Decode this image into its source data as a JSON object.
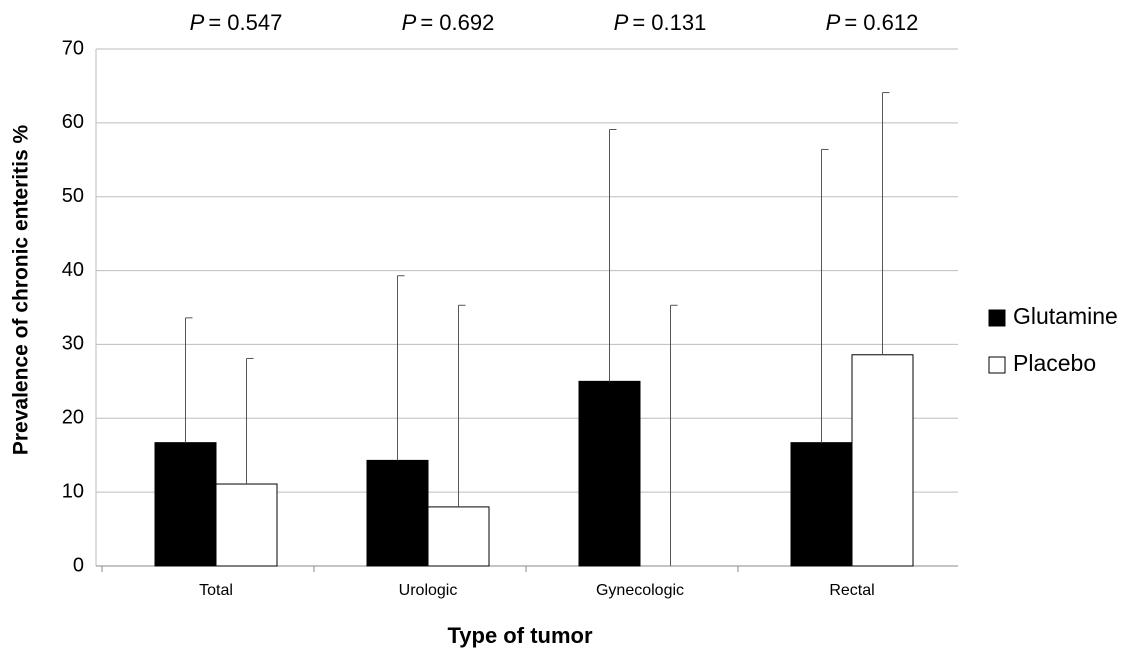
{
  "chart_data": {
    "type": "bar",
    "x_label": "Type of tumor",
    "y_label": "Prevalence of chronic enteritis %",
    "categories": [
      "Total",
      "Urologic",
      "Gynecologic",
      "Rectal"
    ],
    "series": [
      {
        "name": "Glutamine",
        "color": "#000000",
        "values": [
          16.7,
          14.3,
          25,
          16.7
        ],
        "errors": [
          16.9,
          25.0,
          34.1,
          39.7
        ]
      },
      {
        "name": "Placebo",
        "color": "#ffffff",
        "values": [
          11.1,
          8.0,
          0,
          28.6
        ],
        "errors": [
          17.0,
          27.3,
          35.3,
          35.5
        ]
      }
    ],
    "annotations": [
      {
        "symbol": "P",
        "text": "= 0.547"
      },
      {
        "symbol": "P",
        "text": "= 0.692"
      },
      {
        "symbol": "P",
        "text": "= 0.131"
      },
      {
        "symbol": "P",
        "text": "= 0.612"
      }
    ],
    "ylim": [
      0,
      70
    ],
    "yticks": [
      0,
      10,
      20,
      30,
      40,
      50,
      60,
      70
    ],
    "grid": true,
    "legend": "right"
  }
}
